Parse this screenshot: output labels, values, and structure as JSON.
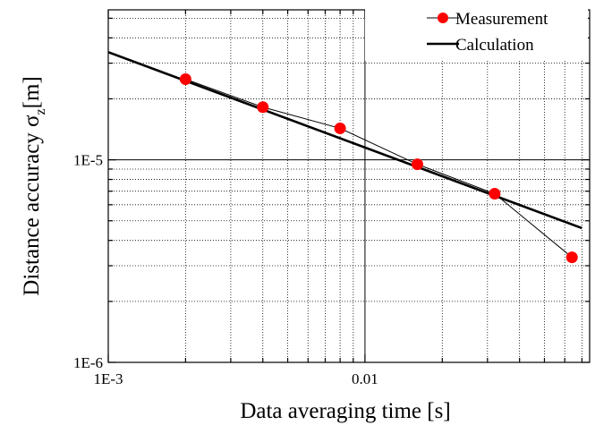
{
  "chart_data": {
    "type": "scatter",
    "xlabel": "Data averaging time [s]",
    "ylabel_main": "Distance accuracy σ",
    "ylabel_sub": "z",
    "ylabel_unit": "[m]",
    "x_scale": "log",
    "y_scale": "log",
    "xlim": [
      0.001,
      0.075
    ],
    "ylim": [
      1e-06,
      5.5e-05
    ],
    "x_ticks": [
      {
        "value": 0.001,
        "label": "1E-3"
      },
      {
        "value": 0.01,
        "label": "0.01"
      }
    ],
    "y_ticks": [
      {
        "value": 1e-06,
        "label": "1E-6"
      },
      {
        "value": 1e-05,
        "label": "1E-5"
      }
    ],
    "grid": true,
    "legend_position": "top-right",
    "series": [
      {
        "name": "Measurement",
        "style": "line+markers",
        "color": "#ff0000",
        "line_color": "#000000",
        "x": [
          0.002,
          0.004,
          0.008,
          0.016,
          0.032,
          0.064
        ],
        "y": [
          2.5e-05,
          1.82e-05,
          1.43e-05,
          9.5e-06,
          6.8e-06,
          3.3e-06
        ]
      },
      {
        "name": "Calculation",
        "style": "line",
        "color": "#000000",
        "x": [
          0.001,
          0.07
        ],
        "y": [
          3.4e-05,
          4.6e-06
        ]
      }
    ]
  }
}
